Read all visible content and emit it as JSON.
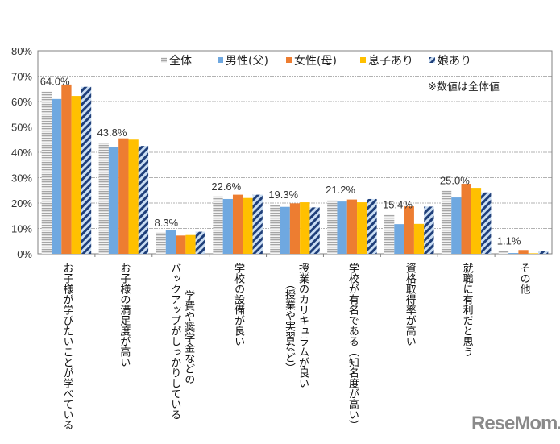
{
  "chart_data": {
    "type": "bar",
    "ylim": [
      0,
      80
    ],
    "yticks": [
      "0%",
      "10%",
      "20%",
      "30%",
      "40%",
      "50%",
      "60%",
      "70%",
      "80%"
    ],
    "grid": true,
    "legend_position": "top",
    "note": "※数値は全体値",
    "categories": [
      [
        "お子様が学びたいことが学べている"
      ],
      [
        "お子様の満足度が高い"
      ],
      [
        "学費や奨学金などの",
        "バックアップがしっかりしている"
      ],
      [
        "学校の設備が良い"
      ],
      [
        "授業のカリキュラムが良い",
        "（授業や実習など）"
      ],
      [
        "学校が有名である（知名度が高い）"
      ],
      [
        "資格取得率が高い"
      ],
      [
        "就職に有利だと思う"
      ],
      [
        "その他"
      ]
    ],
    "data_labels": [
      "64.0%",
      "43.8%",
      "8.3%",
      "22.6%",
      "19.3%",
      "21.2%",
      "15.4%",
      "25.0%",
      "1.1%"
    ],
    "series": [
      {
        "name": "全体",
        "color": "#bfbfbf",
        "pattern": "horizontal-lines",
        "values": [
          64.0,
          43.8,
          8.3,
          22.6,
          19.3,
          21.2,
          15.4,
          25.0,
          1.1
        ]
      },
      {
        "name": "男性(父)",
        "color": "#6fa8e0",
        "values": [
          61.0,
          42.0,
          9.3,
          21.6,
          18.5,
          20.6,
          11.7,
          22.2,
          0.3
        ]
      },
      {
        "name": "女性(母)",
        "color": "#ed7d31",
        "values": [
          66.7,
          45.5,
          7.2,
          23.3,
          19.9,
          21.4,
          18.7,
          27.6,
          1.5
        ]
      },
      {
        "name": "息子あり",
        "color": "#ffc000",
        "values": [
          62.2,
          45.0,
          7.4,
          22.0,
          20.3,
          20.3,
          11.8,
          26.0,
          0.2
        ]
      },
      {
        "name": "娘あり",
        "color": "#1f3f7a",
        "pattern": "diagonal-stripes",
        "values": [
          65.8,
          42.5,
          8.7,
          23.3,
          18.3,
          21.6,
          18.6,
          24.2,
          1.0
        ]
      }
    ]
  },
  "watermark": "ReseMom"
}
